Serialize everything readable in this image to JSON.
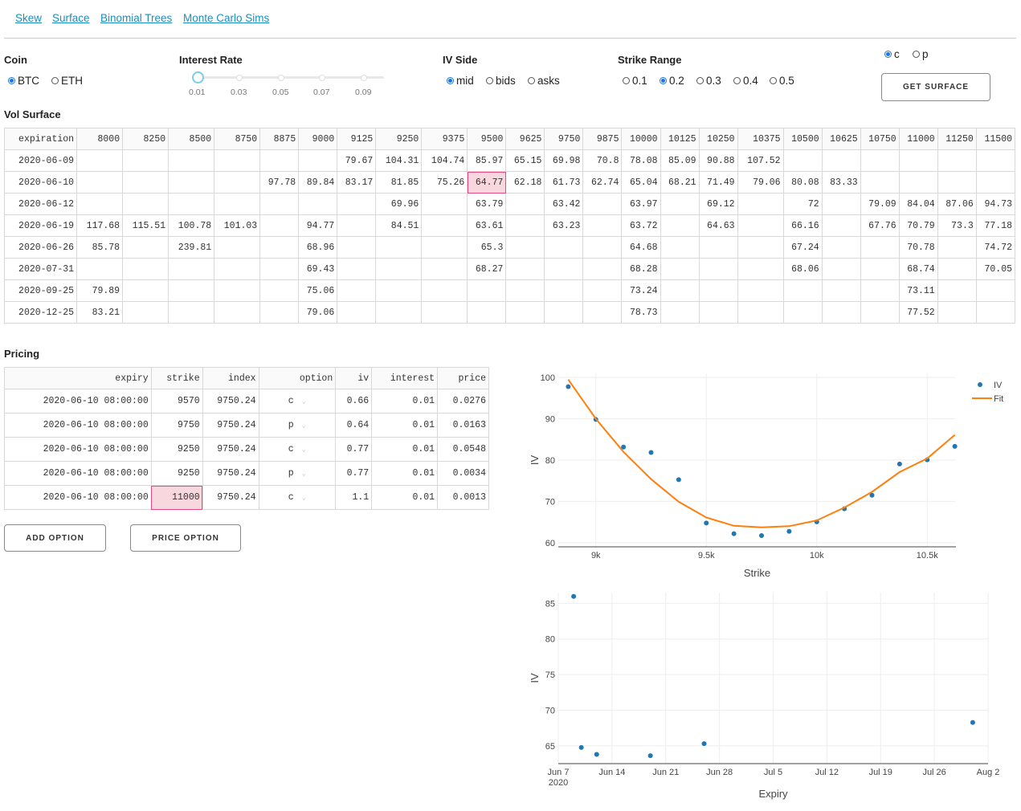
{
  "nav": {
    "links": [
      "Skew",
      "Surface",
      "Binomial Trees",
      "Monte Carlo Sims"
    ]
  },
  "controls": {
    "coin": {
      "label": "Coin",
      "options": [
        "BTC",
        "ETH"
      ],
      "selected": "BTC"
    },
    "interest_rate": {
      "label": "Interest Rate",
      "marks": [
        "0.01",
        "0.03",
        "0.05",
        "0.07",
        "0.09"
      ],
      "value": 0.01
    },
    "iv_side": {
      "label": "IV Side",
      "options": [
        "mid",
        "bids",
        "asks"
      ],
      "selected": "mid"
    },
    "strike_range": {
      "label": "Strike Range",
      "options": [
        "0.1",
        "0.2",
        "0.3",
        "0.4",
        "0.5"
      ],
      "selected": "0.2"
    },
    "option_type": {
      "options": [
        "c",
        "p"
      ],
      "selected": "c"
    },
    "get_surface_label": "GET SURFACE"
  },
  "vol_surface": {
    "title": "Vol Surface",
    "columns": [
      "expiration",
      "8000",
      "8250",
      "8500",
      "8750",
      "8875",
      "9000",
      "9125",
      "9250",
      "9375",
      "9500",
      "9625",
      "9750",
      "9875",
      "10000",
      "10125",
      "10250",
      "10375",
      "10500",
      "10625",
      "10750",
      "11000",
      "11250",
      "11500"
    ],
    "rows": [
      [
        "2020-06-09",
        "",
        "",
        "",
        "",
        "",
        "",
        "79.67",
        "104.31",
        "104.74",
        "85.97",
        "65.15",
        "69.98",
        "70.8",
        "78.08",
        "85.09",
        "90.88",
        "107.52",
        "",
        "",
        "",
        "",
        "",
        ""
      ],
      [
        "2020-06-10",
        "",
        "",
        "",
        "",
        "97.78",
        "89.84",
        "83.17",
        "81.85",
        "75.26",
        "64.77",
        "62.18",
        "61.73",
        "62.74",
        "65.04",
        "68.21",
        "71.49",
        "79.06",
        "80.08",
        "83.33",
        "",
        "",
        "",
        ""
      ],
      [
        "2020-06-12",
        "",
        "",
        "",
        "",
        "",
        "",
        "",
        "69.96",
        "",
        "63.79",
        "",
        "63.42",
        "",
        "63.97",
        "",
        "69.12",
        "",
        "72",
        "",
        "79.09",
        "84.04",
        "87.06",
        "94.73"
      ],
      [
        "2020-06-19",
        "117.68",
        "115.51",
        "100.78",
        "101.03",
        "",
        "94.77",
        "",
        "84.51",
        "",
        "63.61",
        "",
        "63.23",
        "",
        "63.72",
        "",
        "64.63",
        "",
        "66.16",
        "",
        "67.76",
        "70.79",
        "73.3",
        "77.18"
      ],
      [
        "2020-06-26",
        "85.78",
        "",
        "239.81",
        "",
        "",
        "68.96",
        "",
        "",
        "",
        "65.3",
        "",
        "",
        "",
        "64.68",
        "",
        "",
        "",
        "67.24",
        "",
        "",
        "70.78",
        "",
        "74.72"
      ],
      [
        "2020-07-31",
        "",
        "",
        "",
        "",
        "",
        "69.43",
        "",
        "",
        "",
        "68.27",
        "",
        "",
        "",
        "68.28",
        "",
        "",
        "",
        "68.06",
        "",
        "",
        "68.74",
        "",
        "70.05"
      ],
      [
        "2020-09-25",
        "79.89",
        "",
        "",
        "",
        "",
        "75.06",
        "",
        "",
        "",
        "",
        "",
        "",
        "",
        "73.24",
        "",
        "",
        "",
        "",
        "",
        "",
        "73.11",
        "",
        ""
      ],
      [
        "2020-12-25",
        "83.21",
        "",
        "",
        "",
        "",
        "79.06",
        "",
        "",
        "",
        "",
        "",
        "",
        "",
        "78.73",
        "",
        "",
        "",
        "",
        "",
        "",
        "77.52",
        "",
        ""
      ]
    ]
  },
  "pricing": {
    "title": "Pricing",
    "columns": [
      "expiry",
      "strike",
      "index",
      "option",
      "iv",
      "interest",
      "price"
    ],
    "rows": [
      [
        "2020-06-10 08:00:00",
        "9570",
        "9750.24",
        "c",
        "0.66",
        "0.01",
        "0.0276"
      ],
      [
        "2020-06-10 08:00:00",
        "9750",
        "9750.24",
        "p",
        "0.64",
        "0.01",
        "0.0163"
      ],
      [
        "2020-06-10 08:00:00",
        "9250",
        "9750.24",
        "c",
        "0.77",
        "0.01",
        "0.0548"
      ],
      [
        "2020-06-10 08:00:00",
        "9250",
        "9750.24",
        "p",
        "0.77",
        "0.01",
        "0.0034"
      ],
      [
        "2020-06-10 08:00:00",
        "11000",
        "9750.24",
        "c",
        "1.1",
        "0.01",
        "0.0013"
      ]
    ],
    "add_label": "ADD OPTION",
    "price_label": "PRICE OPTION"
  },
  "chart_data": [
    {
      "type": "scatter",
      "title": "",
      "xlabel": "Strike",
      "ylabel": "IV",
      "xlim": [
        8830,
        10630
      ],
      "ylim": [
        59,
        101
      ],
      "xticks": [
        9000,
        9500,
        10000,
        10500
      ],
      "xticklabels": [
        "9k",
        "9.5k",
        "10k",
        "10.5k"
      ],
      "yticks": [
        60,
        70,
        80,
        90,
        100
      ],
      "legend": {
        "placement": "top-right",
        "entries": [
          "IV",
          "Fit"
        ]
      },
      "series": [
        {
          "name": "IV",
          "kind": "markers",
          "color": "#1f77b4",
          "x": [
            8875,
            9000,
            9125,
            9250,
            9375,
            9500,
            9625,
            9750,
            9875,
            10000,
            10125,
            10250,
            10375,
            10500,
            10625
          ],
          "y": [
            97.78,
            89.84,
            83.17,
            81.85,
            75.26,
            64.77,
            62.18,
            61.73,
            62.74,
            65.04,
            68.21,
            71.49,
            79.06,
            80.08,
            83.33
          ]
        },
        {
          "name": "Fit",
          "kind": "line",
          "color": "#ff7f0e",
          "x": [
            8875,
            9000,
            9125,
            9250,
            9375,
            9500,
            9625,
            9750,
            9875,
            10000,
            10125,
            10250,
            10375,
            10500,
            10625
          ],
          "y": [
            99.5,
            90.0,
            82.0,
            75.4,
            69.9,
            66.1,
            64.1,
            63.7,
            64.0,
            65.4,
            68.5,
            72.3,
            77.1,
            80.4,
            86.1
          ]
        }
      ]
    },
    {
      "type": "scatter",
      "title": "",
      "xlabel": "Expiry",
      "ylabel": "IV",
      "xlim": [
        "2020-06-07",
        "2020-08-02"
      ],
      "ylim": [
        62.5,
        86.5
      ],
      "xticks": [
        "2020-06-07",
        "2020-06-14",
        "2020-06-21",
        "2020-06-28",
        "2020-07-05",
        "2020-07-12",
        "2020-07-19",
        "2020-07-26",
        "2020-08-02"
      ],
      "xticklabels": [
        "Jun 7",
        "Jun 14",
        "Jun 21",
        "Jun 28",
        "Jul 5",
        "Jul 12",
        "Jul 19",
        "Jul 26",
        "Aug 2"
      ],
      "xtick_year": "2020",
      "yticks": [
        65,
        70,
        75,
        80,
        85
      ],
      "series": [
        {
          "name": "",
          "kind": "markers",
          "color": "#1f77b4",
          "x": [
            "2020-06-09",
            "2020-06-10",
            "2020-06-12",
            "2020-06-19",
            "2020-06-26",
            "2020-07-31"
          ],
          "y": [
            85.97,
            64.77,
            63.79,
            63.61,
            65.3,
            68.27
          ]
        }
      ]
    }
  ]
}
